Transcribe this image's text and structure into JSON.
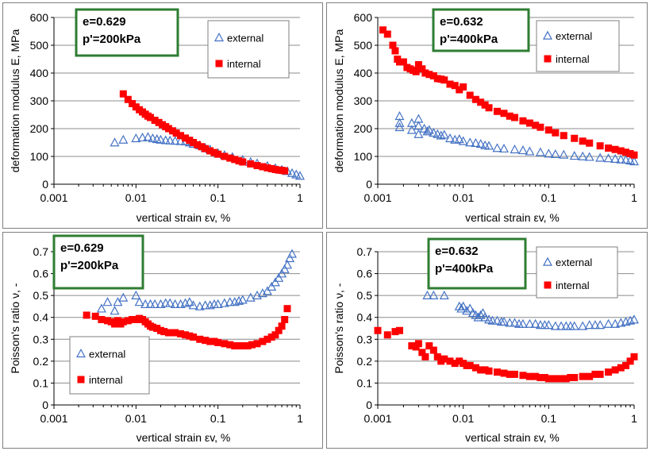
{
  "chart_data": [
    {
      "type": "scatter",
      "xscale": "log",
      "xlim": [
        0.001,
        1
      ],
      "ylim": [
        0,
        600
      ],
      "xlabel": "vertical strain εv, %",
      "ylabel": "deformation modulus E, MPa",
      "xticks": [
        0.001,
        0.01,
        0.1,
        1
      ],
      "xtick_labels": [
        "0.001",
        "0.01",
        "0.1",
        "1"
      ],
      "yticks": [
        0,
        100,
        200,
        300,
        400,
        500,
        600
      ],
      "ytick_labels": [
        "0",
        "100",
        "200",
        "300",
        "400",
        "500",
        "600"
      ],
      "grid": "horizontal",
      "info_box": [
        "e=0.629",
        "p'=200kPa"
      ],
      "legend_position": "top-right",
      "series": [
        {
          "name": "external",
          "marker": "open-triangle",
          "color": "#4472c4",
          "x": [
            0.0055,
            0.007,
            0.01,
            0.012,
            0.014,
            0.016,
            0.018,
            0.02,
            0.023,
            0.026,
            0.03,
            0.035,
            0.04,
            0.045,
            0.05,
            0.06,
            0.07,
            0.08,
            0.1,
            0.12,
            0.15,
            0.2,
            0.25,
            0.3,
            0.4,
            0.5,
            0.6,
            0.7,
            0.8,
            0.9,
            1.0
          ],
          "y": [
            150,
            160,
            165,
            168,
            170,
            165,
            162,
            160,
            158,
            157,
            156,
            155,
            154,
            150,
            145,
            140,
            130,
            125,
            112,
            105,
            98,
            88,
            80,
            75,
            66,
            58,
            52,
            47,
            40,
            35,
            30
          ]
        },
        {
          "name": "internal",
          "marker": "filled-square",
          "color": "#ff0000",
          "x": [
            0.007,
            0.008,
            0.009,
            0.01,
            0.011,
            0.012,
            0.013,
            0.014,
            0.015,
            0.017,
            0.019,
            0.021,
            0.023,
            0.025,
            0.028,
            0.031,
            0.035,
            0.04,
            0.045,
            0.05,
            0.056,
            0.063,
            0.07,
            0.08,
            0.09,
            0.1,
            0.12,
            0.14,
            0.16,
            0.18,
            0.2,
            0.25,
            0.3,
            0.35,
            0.4,
            0.45,
            0.5,
            0.55,
            0.6,
            0.65
          ],
          "y": [
            325,
            305,
            290,
            278,
            268,
            260,
            252,
            245,
            240,
            230,
            222,
            214,
            207,
            200,
            192,
            184,
            175,
            166,
            158,
            150,
            142,
            135,
            128,
            120,
            114,
            108,
            100,
            94,
            89,
            84,
            80,
            73,
            67,
            63,
            59,
            56,
            53,
            51,
            50,
            48
          ]
        }
      ]
    },
    {
      "type": "scatter",
      "xscale": "log",
      "xlim": [
        0.001,
        1
      ],
      "ylim": [
        0,
        600
      ],
      "xlabel": "vertical strain εv, %",
      "ylabel": "deformation modulus E, MPa",
      "xticks": [
        0.001,
        0.01,
        0.1,
        1
      ],
      "xtick_labels": [
        "0.001",
        "0.01",
        "0.1",
        "1"
      ],
      "yticks": [
        0,
        100,
        200,
        300,
        400,
        500,
        600
      ],
      "ytick_labels": [
        "0",
        "100",
        "200",
        "300",
        "400",
        "500",
        "600"
      ],
      "grid": "horizontal",
      "info_box": [
        "e=0.632",
        "p'=400kPa"
      ],
      "legend_position": "top-right",
      "series": [
        {
          "name": "external",
          "marker": "open-triangle",
          "color": "#4472c4",
          "x": [
            0.0018,
            0.0018,
            0.0018,
            0.0025,
            0.0025,
            0.003,
            0.003,
            0.003,
            0.0035,
            0.0038,
            0.004,
            0.0045,
            0.005,
            0.0055,
            0.006,
            0.007,
            0.008,
            0.009,
            0.01,
            0.012,
            0.014,
            0.016,
            0.018,
            0.02,
            0.025,
            0.03,
            0.04,
            0.05,
            0.06,
            0.08,
            0.1,
            0.12,
            0.15,
            0.2,
            0.25,
            0.3,
            0.4,
            0.5,
            0.6,
            0.7,
            0.8,
            0.9,
            1.0
          ],
          "y": [
            245,
            220,
            205,
            220,
            195,
            235,
            210,
            180,
            200,
            190,
            195,
            185,
            180,
            175,
            178,
            165,
            160,
            162,
            155,
            150,
            148,
            145,
            140,
            138,
            130,
            128,
            125,
            122,
            118,
            115,
            110,
            108,
            106,
            102,
            100,
            98,
            95,
            93,
            91,
            89,
            88,
            85,
            82
          ]
        },
        {
          "name": "internal",
          "marker": "filled-square",
          "color": "#ff0000",
          "x": [
            0.00115,
            0.0013,
            0.0015,
            0.0016,
            0.0017,
            0.0018,
            0.002,
            0.0022,
            0.0024,
            0.0026,
            0.0028,
            0.003,
            0.0033,
            0.0036,
            0.004,
            0.0045,
            0.005,
            0.0055,
            0.006,
            0.007,
            0.008,
            0.009,
            0.01,
            0.012,
            0.014,
            0.016,
            0.018,
            0.02,
            0.025,
            0.03,
            0.035,
            0.04,
            0.05,
            0.06,
            0.07,
            0.08,
            0.1,
            0.12,
            0.15,
            0.2,
            0.25,
            0.3,
            0.4,
            0.5,
            0.6,
            0.7,
            0.8,
            0.9,
            1.0
          ],
          "y": [
            555,
            540,
            500,
            480,
            450,
            440,
            440,
            420,
            415,
            410,
            405,
            430,
            415,
            400,
            395,
            390,
            380,
            378,
            375,
            360,
            355,
            340,
            350,
            320,
            305,
            295,
            285,
            275,
            262,
            255,
            245,
            240,
            228,
            220,
            212,
            205,
            195,
            185,
            175,
            165,
            155,
            148,
            138,
            130,
            125,
            120,
            115,
            110,
            105
          ]
        }
      ]
    },
    {
      "type": "scatter",
      "xscale": "log",
      "xlim": [
        0.001,
        1
      ],
      "ylim": [
        0,
        0.7
      ],
      "xlabel": "vertical strain εv, %",
      "ylabel": "Poisson's ratio ν, -",
      "xticks": [
        0.001,
        0.01,
        0.1,
        1
      ],
      "xtick_labels": [
        "0.001",
        "0.01",
        "0.1",
        "1"
      ],
      "yticks": [
        0,
        0.1,
        0.2,
        0.3,
        0.4,
        0.5,
        0.6,
        0.7
      ],
      "ytick_labels": [
        "0",
        "0.1",
        "0.2",
        "0.3",
        "0.4",
        "0.5",
        "0.6",
        "0.7"
      ],
      "grid": "horizontal",
      "info_box": [
        "e=0.629",
        "p'=200kPa"
      ],
      "legend_position": "bottom-left",
      "series": [
        {
          "name": "external",
          "marker": "open-triangle",
          "color": "#4472c4",
          "x": [
            0.0038,
            0.0045,
            0.0055,
            0.006,
            0.007,
            0.01,
            0.011,
            0.013,
            0.015,
            0.017,
            0.02,
            0.023,
            0.026,
            0.03,
            0.035,
            0.04,
            0.045,
            0.05,
            0.06,
            0.07,
            0.08,
            0.09,
            0.1,
            0.12,
            0.14,
            0.16,
            0.18,
            0.2,
            0.25,
            0.3,
            0.35,
            0.4,
            0.45,
            0.5,
            0.55,
            0.6,
            0.65,
            0.7,
            0.75,
            0.8
          ],
          "y": [
            0.44,
            0.47,
            0.43,
            0.47,
            0.49,
            0.5,
            0.47,
            0.46,
            0.46,
            0.46,
            0.46,
            0.465,
            0.465,
            0.46,
            0.46,
            0.465,
            0.47,
            0.455,
            0.45,
            0.455,
            0.455,
            0.46,
            0.46,
            0.465,
            0.47,
            0.47,
            0.475,
            0.48,
            0.49,
            0.5,
            0.51,
            0.52,
            0.54,
            0.56,
            0.58,
            0.6,
            0.62,
            0.64,
            0.67,
            0.69
          ]
        },
        {
          "name": "internal",
          "marker": "filled-square",
          "color": "#ff0000",
          "x": [
            0.0025,
            0.0032,
            0.0038,
            0.0045,
            0.005,
            0.0055,
            0.006,
            0.0065,
            0.007,
            0.008,
            0.009,
            0.01,
            0.011,
            0.012,
            0.013,
            0.014,
            0.015,
            0.016,
            0.018,
            0.02,
            0.022,
            0.025,
            0.028,
            0.03,
            0.035,
            0.04,
            0.045,
            0.05,
            0.06,
            0.07,
            0.08,
            0.09,
            0.1,
            0.12,
            0.14,
            0.16,
            0.18,
            0.2,
            0.23,
            0.26,
            0.3,
            0.35,
            0.4,
            0.45,
            0.5,
            0.55,
            0.6,
            0.65,
            0.7
          ],
          "y": [
            0.41,
            0.405,
            0.39,
            0.385,
            0.38,
            0.37,
            0.385,
            0.37,
            0.38,
            0.385,
            0.39,
            0.39,
            0.395,
            0.39,
            0.38,
            0.37,
            0.36,
            0.355,
            0.35,
            0.34,
            0.335,
            0.33,
            0.33,
            0.33,
            0.325,
            0.32,
            0.315,
            0.31,
            0.3,
            0.295,
            0.29,
            0.29,
            0.285,
            0.28,
            0.275,
            0.27,
            0.27,
            0.27,
            0.27,
            0.275,
            0.28,
            0.29,
            0.3,
            0.31,
            0.32,
            0.34,
            0.36,
            0.39,
            0.44
          ]
        }
      ]
    },
    {
      "type": "scatter",
      "xscale": "log",
      "xlim": [
        0.001,
        1
      ],
      "ylim": [
        0,
        0.7
      ],
      "xlabel": "vertical strain εv, %",
      "ylabel": "Poisson's ratio ν, -",
      "xticks": [
        0.001,
        0.01,
        0.1,
        1
      ],
      "xtick_labels": [
        "0.001",
        "0.01",
        "0.1",
        "1"
      ],
      "yticks": [
        0,
        0.1,
        0.2,
        0.3,
        0.4,
        0.5,
        0.6,
        0.7
      ],
      "ytick_labels": [
        "0",
        "0.1",
        "0.2",
        "0.3",
        "0.4",
        "0.5",
        "0.6",
        "0.7"
      ],
      "grid": "horizontal",
      "info_box": [
        "e=0.632",
        "p'=400kPa"
      ],
      "legend_position": "top-right",
      "series": [
        {
          "name": "external",
          "marker": "open-triangle",
          "color": "#4472c4",
          "x": [
            0.0038,
            0.0045,
            0.006,
            0.009,
            0.0095,
            0.01,
            0.011,
            0.012,
            0.013,
            0.014,
            0.015,
            0.016,
            0.017,
            0.018,
            0.02,
            0.022,
            0.025,
            0.028,
            0.03,
            0.035,
            0.04,
            0.045,
            0.05,
            0.06,
            0.07,
            0.08,
            0.09,
            0.1,
            0.12,
            0.14,
            0.16,
            0.18,
            0.2,
            0.25,
            0.3,
            0.35,
            0.4,
            0.5,
            0.6,
            0.7,
            0.8,
            0.9,
            1.0
          ],
          "y": [
            0.5,
            0.5,
            0.5,
            0.45,
            0.44,
            0.45,
            0.43,
            0.44,
            0.42,
            0.41,
            0.4,
            0.41,
            0.42,
            0.4,
            0.39,
            0.385,
            0.385,
            0.38,
            0.38,
            0.375,
            0.375,
            0.37,
            0.37,
            0.37,
            0.37,
            0.365,
            0.365,
            0.365,
            0.36,
            0.36,
            0.36,
            0.36,
            0.36,
            0.36,
            0.365,
            0.365,
            0.365,
            0.37,
            0.37,
            0.375,
            0.38,
            0.385,
            0.39
          ]
        },
        {
          "name": "internal",
          "marker": "filled-square",
          "color": "#ff0000",
          "x": [
            0.001,
            0.0013,
            0.0016,
            0.0018,
            0.0025,
            0.0028,
            0.003,
            0.0033,
            0.0036,
            0.004,
            0.0045,
            0.005,
            0.0055,
            0.006,
            0.007,
            0.008,
            0.009,
            0.01,
            0.011,
            0.012,
            0.014,
            0.016,
            0.018,
            0.02,
            0.025,
            0.03,
            0.035,
            0.04,
            0.05,
            0.06,
            0.07,
            0.08,
            0.09,
            0.1,
            0.12,
            0.14,
            0.16,
            0.18,
            0.2,
            0.25,
            0.3,
            0.35,
            0.4,
            0.5,
            0.6,
            0.7,
            0.8,
            0.9,
            1.0
          ],
          "y": [
            0.34,
            0.32,
            0.335,
            0.34,
            0.27,
            0.265,
            0.28,
            0.24,
            0.22,
            0.27,
            0.25,
            0.22,
            0.2,
            0.21,
            0.2,
            0.19,
            0.2,
            0.19,
            0.18,
            0.18,
            0.17,
            0.16,
            0.16,
            0.155,
            0.15,
            0.145,
            0.14,
            0.14,
            0.135,
            0.13,
            0.13,
            0.125,
            0.125,
            0.12,
            0.12,
            0.12,
            0.12,
            0.125,
            0.125,
            0.13,
            0.13,
            0.14,
            0.14,
            0.15,
            0.16,
            0.17,
            0.18,
            0.2,
            0.22
          ]
        }
      ]
    }
  ]
}
